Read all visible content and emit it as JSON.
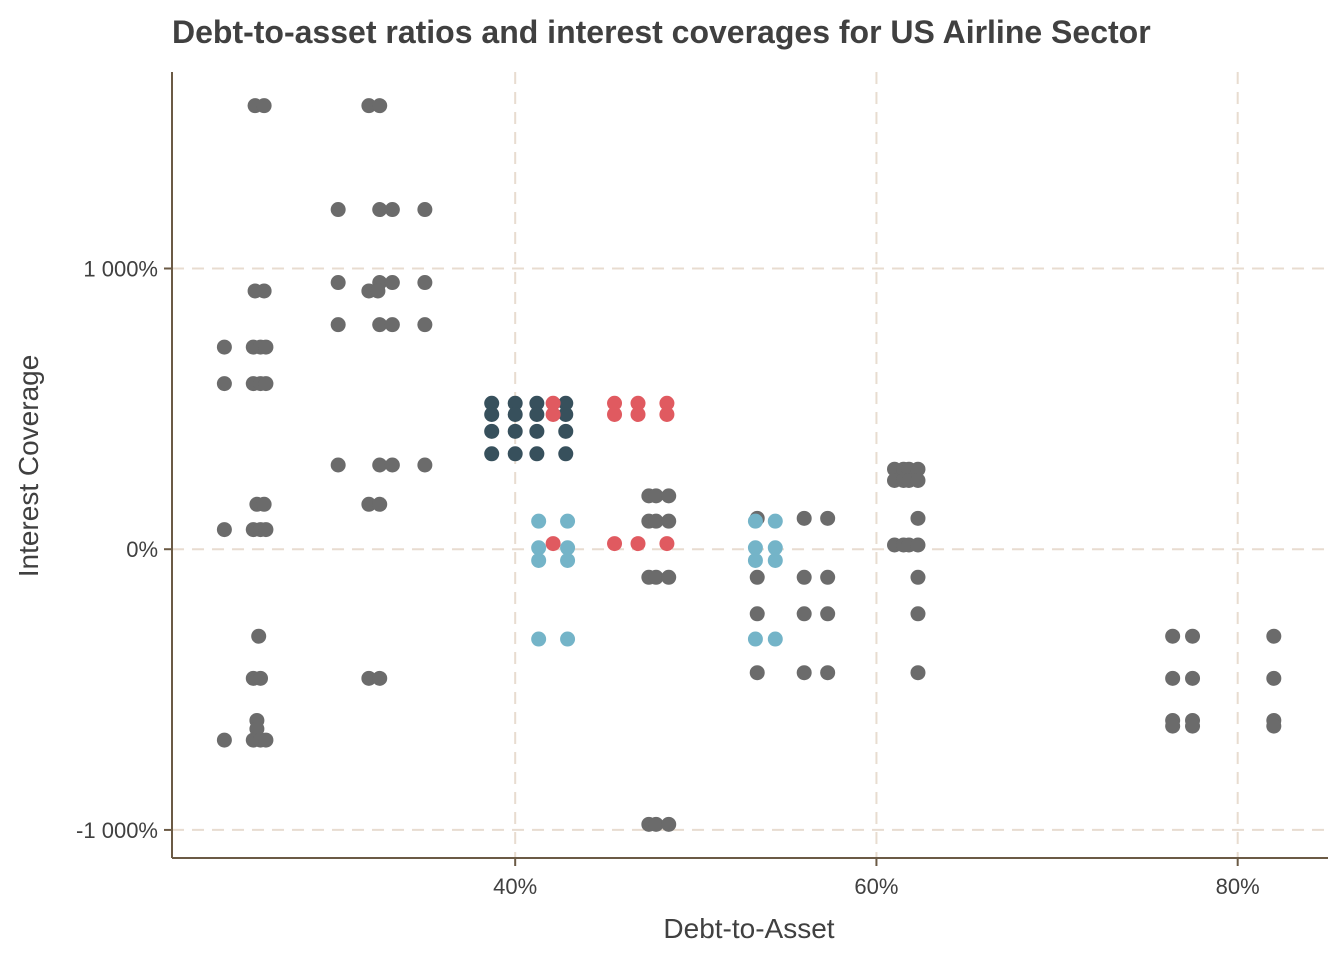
{
  "chart_data": {
    "type": "scatter",
    "title": "Debt-to-asset ratios and interest coverages for  US Airline Sector",
    "xlabel": "Debt-to-Asset",
    "ylabel": "Interest Coverage",
    "xlim": [
      0.21,
      0.85
    ],
    "ylim": [
      -11.0,
      17.0
    ],
    "xticks": [
      0.4,
      0.6,
      0.8
    ],
    "xtick_labels": [
      "40%",
      "60%",
      "80%"
    ],
    "yticks": [
      -10,
      0,
      10
    ],
    "ytick_labels": [
      "-1 000%",
      "0%",
      "1 000%"
    ],
    "grid": true,
    "colors": {
      "gray": "#6b6b6b",
      "dark": "#37505c",
      "red": "#e05a60",
      "blue": "#74b4c8"
    },
    "series": [
      {
        "name": "gray",
        "color": "#6b6b6b",
        "points": [
          [
            0.256,
            15.8
          ],
          [
            0.261,
            15.8
          ],
          [
            0.256,
            9.2
          ],
          [
            0.261,
            9.2
          ],
          [
            0.239,
            7.2
          ],
          [
            0.255,
            7.2
          ],
          [
            0.259,
            7.2
          ],
          [
            0.262,
            7.2
          ],
          [
            0.239,
            5.9
          ],
          [
            0.255,
            5.9
          ],
          [
            0.259,
            5.9
          ],
          [
            0.262,
            5.9
          ],
          [
            0.257,
            1.6
          ],
          [
            0.261,
            1.6
          ],
          [
            0.239,
            0.7
          ],
          [
            0.255,
            0.7
          ],
          [
            0.259,
            0.7
          ],
          [
            0.262,
            0.7
          ],
          [
            0.258,
            -3.1
          ],
          [
            0.255,
            -4.6
          ],
          [
            0.259,
            -4.6
          ],
          [
            0.257,
            -6.1
          ],
          [
            0.257,
            -6.4
          ],
          [
            0.239,
            -6.8
          ],
          [
            0.255,
            -6.8
          ],
          [
            0.259,
            -6.8
          ],
          [
            0.262,
            -6.8
          ],
          [
            0.319,
            15.8
          ],
          [
            0.325,
            15.8
          ],
          [
            0.302,
            12.1
          ],
          [
            0.325,
            12.1
          ],
          [
            0.332,
            12.1
          ],
          [
            0.35,
            12.1
          ],
          [
            0.302,
            9.5
          ],
          [
            0.325,
            9.5
          ],
          [
            0.332,
            9.5
          ],
          [
            0.35,
            9.5
          ],
          [
            0.319,
            9.2
          ],
          [
            0.324,
            9.2
          ],
          [
            0.302,
            8.0
          ],
          [
            0.325,
            8.0
          ],
          [
            0.332,
            8.0
          ],
          [
            0.35,
            8.0
          ],
          [
            0.302,
            3.0
          ],
          [
            0.325,
            3.0
          ],
          [
            0.332,
            3.0
          ],
          [
            0.35,
            3.0
          ],
          [
            0.319,
            1.6
          ],
          [
            0.325,
            1.6
          ],
          [
            0.319,
            -4.6
          ],
          [
            0.325,
            -4.6
          ],
          [
            0.474,
            1.9
          ],
          [
            0.478,
            1.9
          ],
          [
            0.485,
            1.9
          ],
          [
            0.474,
            1.0
          ],
          [
            0.478,
            1.0
          ],
          [
            0.485,
            1.0
          ],
          [
            0.474,
            -1.0
          ],
          [
            0.478,
            -1.0
          ],
          [
            0.485,
            -1.0
          ],
          [
            0.474,
            -9.8
          ],
          [
            0.478,
            -9.8
          ],
          [
            0.485,
            -9.8
          ],
          [
            0.534,
            1.1
          ],
          [
            0.56,
            1.1
          ],
          [
            0.573,
            1.1
          ],
          [
            0.534,
            -1.0
          ],
          [
            0.56,
            -1.0
          ],
          [
            0.573,
            -1.0
          ],
          [
            0.534,
            -2.3
          ],
          [
            0.56,
            -2.3
          ],
          [
            0.573,
            -2.3
          ],
          [
            0.534,
            -4.4
          ],
          [
            0.56,
            -4.4
          ],
          [
            0.573,
            -4.4
          ],
          [
            0.61,
            2.85
          ],
          [
            0.615,
            2.85
          ],
          [
            0.618,
            2.85
          ],
          [
            0.623,
            2.85
          ],
          [
            0.61,
            2.45
          ],
          [
            0.615,
            2.45
          ],
          [
            0.618,
            2.45
          ],
          [
            0.623,
            2.45
          ],
          [
            0.623,
            1.1
          ],
          [
            0.61,
            0.15
          ],
          [
            0.615,
            0.15
          ],
          [
            0.618,
            0.15
          ],
          [
            0.623,
            0.15
          ],
          [
            0.623,
            -1.0
          ],
          [
            0.623,
            -2.3
          ],
          [
            0.623,
            -4.4
          ],
          [
            0.764,
            -3.1
          ],
          [
            0.775,
            -3.1
          ],
          [
            0.82,
            -3.1
          ],
          [
            0.764,
            -4.6
          ],
          [
            0.775,
            -4.6
          ],
          [
            0.82,
            -4.6
          ],
          [
            0.764,
            -6.1
          ],
          [
            0.775,
            -6.1
          ],
          [
            0.82,
            -6.1
          ],
          [
            0.764,
            -6.3
          ],
          [
            0.775,
            -6.3
          ],
          [
            0.82,
            -6.3
          ]
        ]
      },
      {
        "name": "dark",
        "color": "#37505c",
        "points": [
          [
            0.387,
            5.2
          ],
          [
            0.4,
            5.2
          ],
          [
            0.412,
            5.2
          ],
          [
            0.428,
            5.2
          ],
          [
            0.387,
            4.8
          ],
          [
            0.4,
            4.8
          ],
          [
            0.412,
            4.8
          ],
          [
            0.428,
            4.8
          ],
          [
            0.387,
            4.2
          ],
          [
            0.4,
            4.2
          ],
          [
            0.412,
            4.2
          ],
          [
            0.428,
            4.2
          ],
          [
            0.387,
            3.4
          ],
          [
            0.4,
            3.4
          ],
          [
            0.412,
            3.4
          ],
          [
            0.428,
            3.4
          ]
        ]
      },
      {
        "name": "red",
        "color": "#e05a60",
        "points": [
          [
            0.421,
            5.2
          ],
          [
            0.421,
            4.8
          ],
          [
            0.421,
            0.2
          ],
          [
            0.455,
            5.2
          ],
          [
            0.468,
            5.2
          ],
          [
            0.484,
            5.2
          ],
          [
            0.455,
            4.8
          ],
          [
            0.468,
            4.8
          ],
          [
            0.484,
            4.8
          ],
          [
            0.455,
            0.2
          ],
          [
            0.468,
            0.2
          ],
          [
            0.484,
            0.2
          ]
        ]
      },
      {
        "name": "blue",
        "color": "#74b4c8",
        "points": [
          [
            0.413,
            1.0
          ],
          [
            0.429,
            1.0
          ],
          [
            0.413,
            0.05
          ],
          [
            0.429,
            0.05
          ],
          [
            0.413,
            -0.4
          ],
          [
            0.429,
            -0.4
          ],
          [
            0.413,
            -3.2
          ],
          [
            0.429,
            -3.2
          ],
          [
            0.533,
            1.0
          ],
          [
            0.544,
            1.0
          ],
          [
            0.533,
            0.05
          ],
          [
            0.544,
            0.05
          ],
          [
            0.533,
            -0.4
          ],
          [
            0.544,
            -0.4
          ],
          [
            0.533,
            -3.2
          ],
          [
            0.544,
            -3.2
          ]
        ]
      }
    ]
  }
}
